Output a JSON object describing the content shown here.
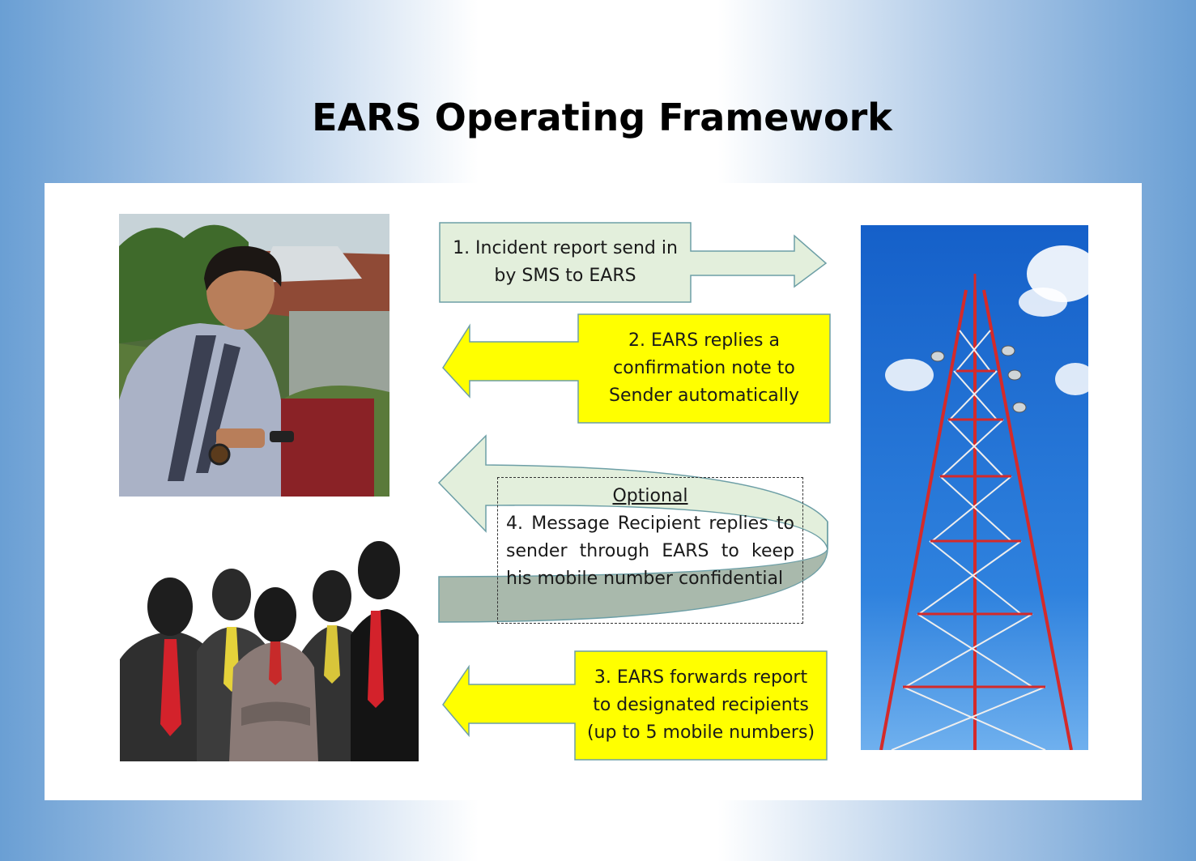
{
  "title": "EARS Operating Framework",
  "steps": {
    "step1": "1. Incident report send in by SMS to EARS",
    "step2": "2. EARS replies a confirmation note to Sender automatically",
    "step3": "3. EARS forwards report to designated recipients (up to 5  mobile numbers)",
    "optional_heading": "Optional",
    "step4": "4. Message Recipient replies to sender through EARS to keep his mobile number confidential"
  },
  "images": {
    "sender": "photo-man-using-mobile-phone",
    "recipients": "illustration-group-of-businessmen",
    "tower": "photo-telecommunication-tower"
  },
  "colors": {
    "green_box": "#e3efdc",
    "yellow_box": "#ffff00",
    "teal_band": "#a9b9ac",
    "sky": "#1f6fd1",
    "tower_red": "#d42a2a"
  }
}
